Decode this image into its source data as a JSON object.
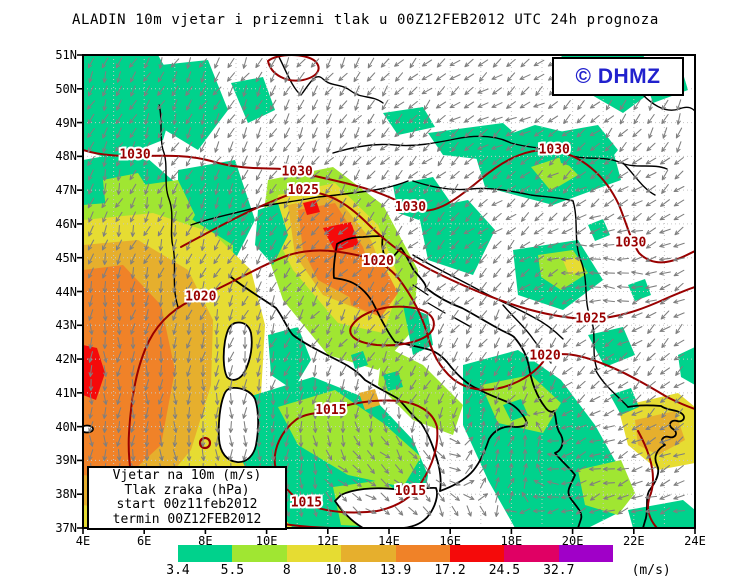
{
  "title": "ALADIN 10m vjetar i prizemni tlak u 00Z12FEB2012 UTC 24h prognoza",
  "watermark": "© DHMZ",
  "legend_box": {
    "lines": [
      "Vjetar na 10m (m/s)",
      "Tlak zraka (hPa)",
      "start 00z11feb2012",
      "termin 00Z12FEB2012"
    ]
  },
  "axes": {
    "lat_ticks": [
      "51N",
      "50N",
      "49N",
      "48N",
      "47N",
      "46N",
      "45N",
      "44N",
      "43N",
      "42N",
      "41N",
      "40N",
      "39N",
      "38N",
      "37N"
    ],
    "lon_ticks": [
      "4E",
      "6E",
      "8E",
      "10E",
      "12E",
      "14E",
      "16E",
      "18E",
      "20E",
      "22E",
      "24E"
    ],
    "lat_range": [
      37,
      51
    ],
    "lon_range": [
      4,
      24
    ]
  },
  "colorbar": {
    "tick_values": [
      "3.4",
      "5.5",
      "8",
      "10.8",
      "13.9",
      "17.2",
      "24.5",
      "32.7"
    ],
    "unit": "(m/s)",
    "colors": [
      "#00d28c",
      "#a0e632",
      "#e6dc32",
      "#e6af2d",
      "#f08228",
      "#f50a0a",
      "#e00064",
      "#a000c8"
    ]
  },
  "chart_data": {
    "type": "heatmap",
    "title": "ALADIN 10m vjetar i prizemni tlak u 00Z12FEB2012 UTC 24h prognoza",
    "shading_variable": "10 m wind speed (m/s)",
    "contour_variable": "surface pressure / Tlak zraka (hPa)",
    "model_run_start": "00z11feb2012",
    "valid_time": "00Z12FEB2012",
    "forecast_step": "24h prognoza",
    "lon_range_deg_E": [
      4,
      24
    ],
    "lat_range_deg_N": [
      37,
      51
    ],
    "wind_scale_breaks_ms": [
      3.4,
      5.5,
      8,
      10.8,
      13.9,
      17.2,
      24.5,
      32.7
    ],
    "wind_scale_colors": [
      "#00d28c",
      "#a0e632",
      "#e6dc32",
      "#e6af2d",
      "#f08228",
      "#f50a0a",
      "#e00064",
      "#a000c8"
    ],
    "pressure_contour_levels_hpa": [
      1015,
      1020,
      1025,
      1030
    ],
    "pressure_labels": [
      {
        "value": "1030",
        "lon": 5.7,
        "lat": 48.05
      },
      {
        "value": "1030",
        "lon": 11.0,
        "lat": 47.55
      },
      {
        "value": "1025",
        "lon": 11.2,
        "lat": 47.0
      },
      {
        "value": "1030",
        "lon": 14.7,
        "lat": 46.5
      },
      {
        "value": "1030",
        "lon": 19.4,
        "lat": 48.2
      },
      {
        "value": "1030",
        "lon": 21.9,
        "lat": 45.45
      },
      {
        "value": "1020",
        "lon": 13.65,
        "lat": 44.9
      },
      {
        "value": "1020",
        "lon": 7.85,
        "lat": 43.85
      },
      {
        "value": "1025",
        "lon": 20.6,
        "lat": 43.2
      },
      {
        "value": "1020",
        "lon": 19.1,
        "lat": 42.1
      },
      {
        "value": "1015",
        "lon": 12.1,
        "lat": 40.5
      },
      {
        "value": "1015",
        "lon": 14.7,
        "lat": 38.1
      },
      {
        "value": "1015",
        "lon": 11.3,
        "lat": 37.75
      }
    ],
    "wind_field_summary": [
      {
        "region": "Gulf of Lion / west of Corsica-Sardinia",
        "regime": "strong northerly mistral, 13-25 m/s, local max >17 m/s at 4E 41-42N"
      },
      {
        "region": "northern Adriatic / NE Italy",
        "regime": "NE bora jet 13-24 m/s, red core near 45N 13E"
      },
      {
        "region": "NW Europe and Alpine foreland",
        "regime": "NW flow 3-8 m/s, patchy"
      },
      {
        "region": "Pannonian basin (Hungary)",
        "regime": "NE flow 3-8 m/s band"
      },
      {
        "region": "southern Tyrrhenian / Sicily",
        "regime": "3-8 m/s westerly-variable"
      },
      {
        "region": "Ionian and western Greece",
        "regime": "3-8 m/s"
      },
      {
        "region": "northern Aegean",
        "regime": "8-14 m/s northeasterly patch near 22-24E 40-42N"
      },
      {
        "region": "Po valley, central Balkans interior",
        "regime": "calm < 3.4 m/s (unshaded)"
      }
    ]
  }
}
